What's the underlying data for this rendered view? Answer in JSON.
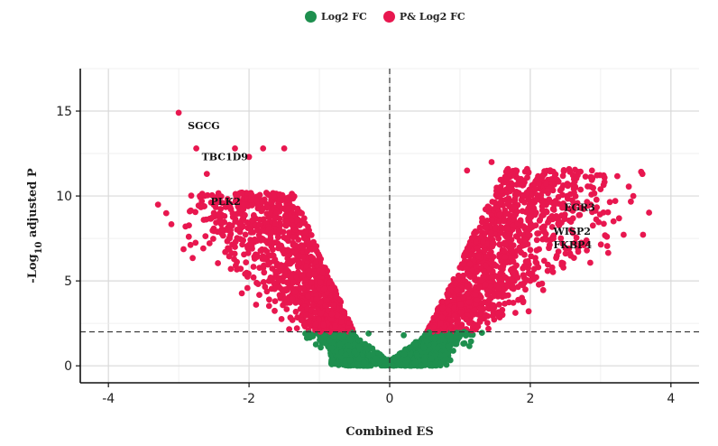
{
  "chart_data": {
    "type": "scatter",
    "title": "",
    "xlabel": "Combined ES",
    "ylabel": "-Log10 adjusted P",
    "ylabel_parts": {
      "prefix": "-Log",
      "subscript": "10",
      "suffix": " adjusted P"
    },
    "xlim": [
      -4.4,
      4.4
    ],
    "ylim": [
      -1.0,
      17.5
    ],
    "x_ticks": [
      -4,
      -2,
      0,
      2,
      4
    ],
    "y_ticks": [
      0,
      5,
      10,
      15
    ],
    "x_tick_labels": [
      "-4",
      "-2",
      "0",
      "2",
      "4"
    ],
    "y_tick_labels": [
      "0",
      "5",
      "10",
      "15"
    ],
    "grid": true,
    "threshold_p": 2.0,
    "threshold_fc": 0,
    "legend_position": "top-center",
    "series": [
      {
        "name": "Log2  FC",
        "color": "#1e8f4e",
        "description": "not significant after adjustment (below dashed line)"
      },
      {
        "name": "P& Log2 FC",
        "color": "#e8174f",
        "description": "significant"
      }
    ],
    "annotations": [
      {
        "label": "SGCG",
        "x": -3.0,
        "y": 14.9
      },
      {
        "label": "TBC1D9",
        "x": -2.75,
        "y": 12.8
      },
      {
        "label": "PLK2",
        "x": -2.7,
        "y": 10.0
      },
      {
        "label": "EGR3",
        "x": 2.35,
        "y": 9.6
      },
      {
        "label": "WISP2",
        "x": 2.2,
        "y": 8.2
      },
      {
        "label": "FKBP4",
        "x": 2.2,
        "y": 7.5
      }
    ],
    "outlier_points": [
      {
        "x": -3.0,
        "y": 14.9
      },
      {
        "x": -2.75,
        "y": 12.8
      },
      {
        "x": -2.2,
        "y": 12.8
      },
      {
        "x": -1.8,
        "y": 12.8
      },
      {
        "x": -1.5,
        "y": 12.8
      },
      {
        "x": -2.7,
        "y": 10.0
      },
      {
        "x": -2.6,
        "y": 11.3
      },
      {
        "x": -2.5,
        "y": 9.0
      },
      {
        "x": -2.4,
        "y": 8.5
      },
      {
        "x": -2.3,
        "y": 8.0
      },
      {
        "x": -2.2,
        "y": 7.0
      },
      {
        "x": -2.1,
        "y": 10.2
      },
      {
        "x": -1.9,
        "y": 3.6
      },
      {
        "x": -2.0,
        "y": 12.3
      },
      {
        "x": 1.1,
        "y": 11.5
      },
      {
        "x": 1.45,
        "y": 12.0
      },
      {
        "x": 1.75,
        "y": 11.3
      },
      {
        "x": 2.1,
        "y": 11.0
      },
      {
        "x": 2.35,
        "y": 9.6
      },
      {
        "x": 2.2,
        "y": 8.2
      },
      {
        "x": 2.2,
        "y": 7.5
      },
      {
        "x": 1.9,
        "y": 3.8
      },
      {
        "x": 2.0,
        "y": 5.0
      },
      {
        "x": 1.95,
        "y": 10.2
      },
      {
        "x": 0.2,
        "y": 1.8
      },
      {
        "x": -0.3,
        "y": 1.9
      }
    ],
    "left_wing": {
      "count": 1500,
      "x_start": -0.3,
      "slope_x_per_y": -0.105,
      "x_spread": 0.9,
      "y_max": 10.2
    },
    "right_wing": {
      "count": 1700,
      "x_start": 0.3,
      "slope_x_per_y": 0.115,
      "x_spread": 1.0,
      "y_max": 11.6
    },
    "base_cloud": {
      "count": 650,
      "x_extent": 0.85
    }
  },
  "legend": {
    "items": [
      {
        "label": "Log2  FC",
        "color": "#1e8f4e"
      },
      {
        "label": "P& Log2 FC",
        "color": "#e8174f"
      }
    ]
  }
}
